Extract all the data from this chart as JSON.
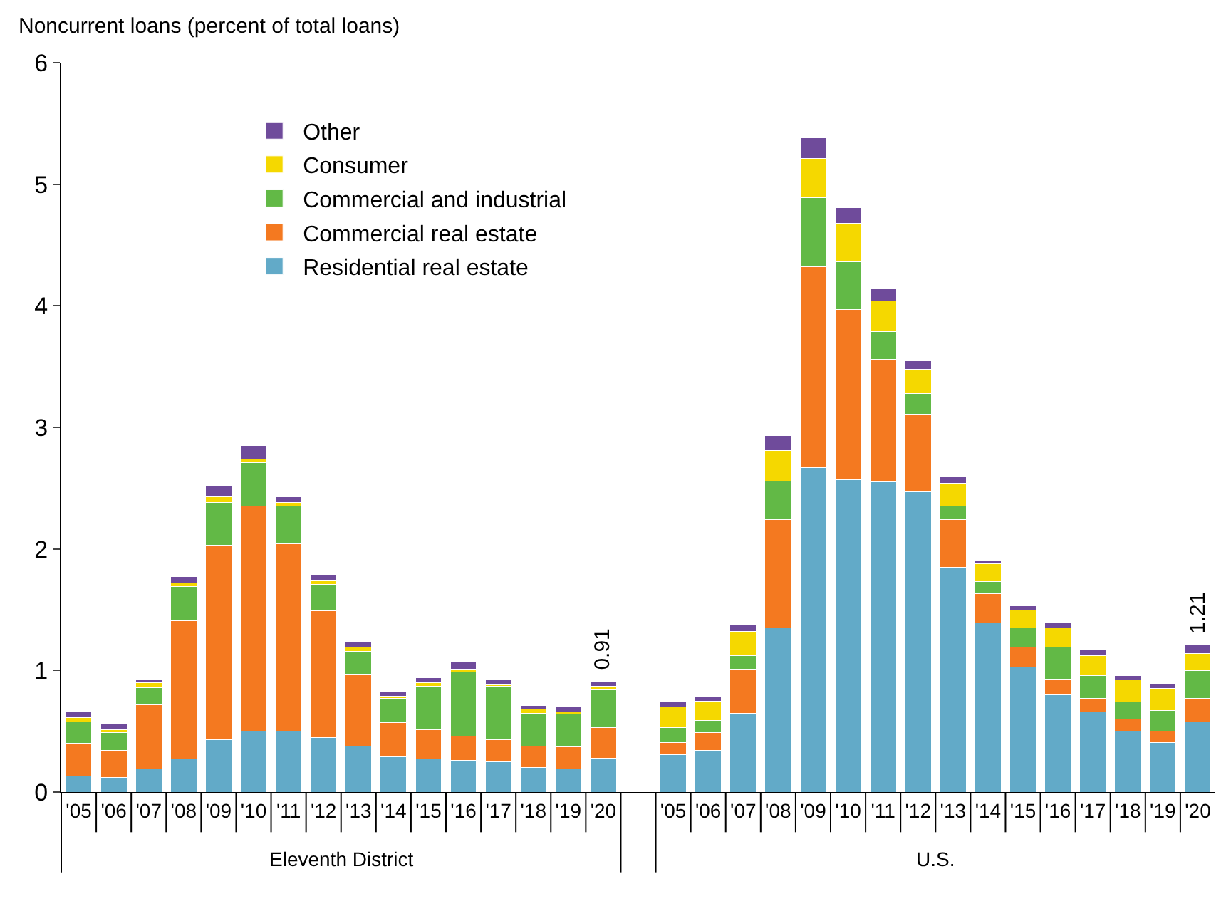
{
  "chart_data": {
    "type": "bar",
    "stacked": true,
    "ylabel": "Noncurrent loans (percent of total loans)",
    "categories": [
      "'05",
      "'06",
      "'07",
      "'08",
      "'09",
      "'10",
      "'11",
      "'12",
      "'13",
      "'14",
      "'15",
      "'16",
      "'17",
      "'18",
      "'19",
      "'20",
      null,
      "'05",
      "'06",
      "'07",
      "'08",
      "'09",
      "'10",
      "'11",
      "'12",
      "'13",
      "'14",
      "'15",
      "'16",
      "'17",
      "'18",
      "'19",
      "'20"
    ],
    "series": [
      {
        "name": "Residential real estate",
        "color": "#62aac8",
        "values": [
          0.13,
          0.12,
          0.19,
          0.27,
          0.43,
          0.5,
          0.5,
          0.45,
          0.38,
          0.29,
          0.27,
          0.26,
          0.25,
          0.2,
          0.19,
          0.28,
          null,
          0.31,
          0.34,
          0.65,
          1.35,
          2.67,
          2.57,
          2.55,
          2.47,
          1.85,
          1.39,
          1.03,
          0.8,
          0.66,
          0.5,
          0.41,
          0.58
        ]
      },
      {
        "name": "Commercial real estate",
        "color": "#f47920",
        "values": [
          0.27,
          0.22,
          0.53,
          1.14,
          1.6,
          1.85,
          1.54,
          1.04,
          0.59,
          0.28,
          0.24,
          0.2,
          0.18,
          0.18,
          0.18,
          0.25,
          null,
          0.1,
          0.15,
          0.36,
          0.89,
          1.65,
          1.4,
          1.01,
          0.64,
          0.39,
          0.24,
          0.16,
          0.13,
          0.11,
          0.1,
          0.09,
          0.19
        ]
      },
      {
        "name": "Commercial and industrial",
        "color": "#62b946",
        "values": [
          0.18,
          0.15,
          0.14,
          0.28,
          0.35,
          0.36,
          0.31,
          0.22,
          0.19,
          0.2,
          0.36,
          0.53,
          0.44,
          0.27,
          0.27,
          0.31,
          null,
          0.12,
          0.1,
          0.11,
          0.32,
          0.57,
          0.39,
          0.23,
          0.17,
          0.11,
          0.1,
          0.16,
          0.26,
          0.19,
          0.14,
          0.17,
          0.23
        ]
      },
      {
        "name": "Consumer",
        "color": "#f5d800",
        "values": [
          0.03,
          0.02,
          0.04,
          0.03,
          0.05,
          0.03,
          0.03,
          0.03,
          0.03,
          0.02,
          0.03,
          0.02,
          0.01,
          0.03,
          0.02,
          0.03,
          null,
          0.17,
          0.16,
          0.2,
          0.25,
          0.32,
          0.32,
          0.25,
          0.2,
          0.19,
          0.15,
          0.15,
          0.16,
          0.16,
          0.18,
          0.18,
          0.14
        ]
      },
      {
        "name": "Other",
        "color": "#6f4b9b",
        "values": [
          0.05,
          0.05,
          0.02,
          0.05,
          0.09,
          0.11,
          0.05,
          0.05,
          0.05,
          0.04,
          0.04,
          0.06,
          0.05,
          0.03,
          0.04,
          0.04,
          null,
          0.04,
          0.03,
          0.06,
          0.12,
          0.17,
          0.13,
          0.1,
          0.07,
          0.05,
          0.03,
          0.03,
          0.04,
          0.05,
          0.04,
          0.04,
          0.07
        ]
      }
    ],
    "totals": [
      null,
      null,
      null,
      null,
      null,
      null,
      null,
      null,
      null,
      null,
      null,
      null,
      null,
      null,
      null,
      "0.91",
      null,
      null,
      null,
      null,
      null,
      null,
      null,
      null,
      null,
      null,
      null,
      null,
      null,
      null,
      null,
      null,
      "1.21"
    ],
    "annotations": [
      "Eleventh District",
      "U.S."
    ],
    "ylim": [
      0,
      6
    ],
    "yticks": [
      0,
      1,
      2,
      3,
      4,
      5,
      6
    ],
    "grid": false,
    "legend": "top left"
  }
}
